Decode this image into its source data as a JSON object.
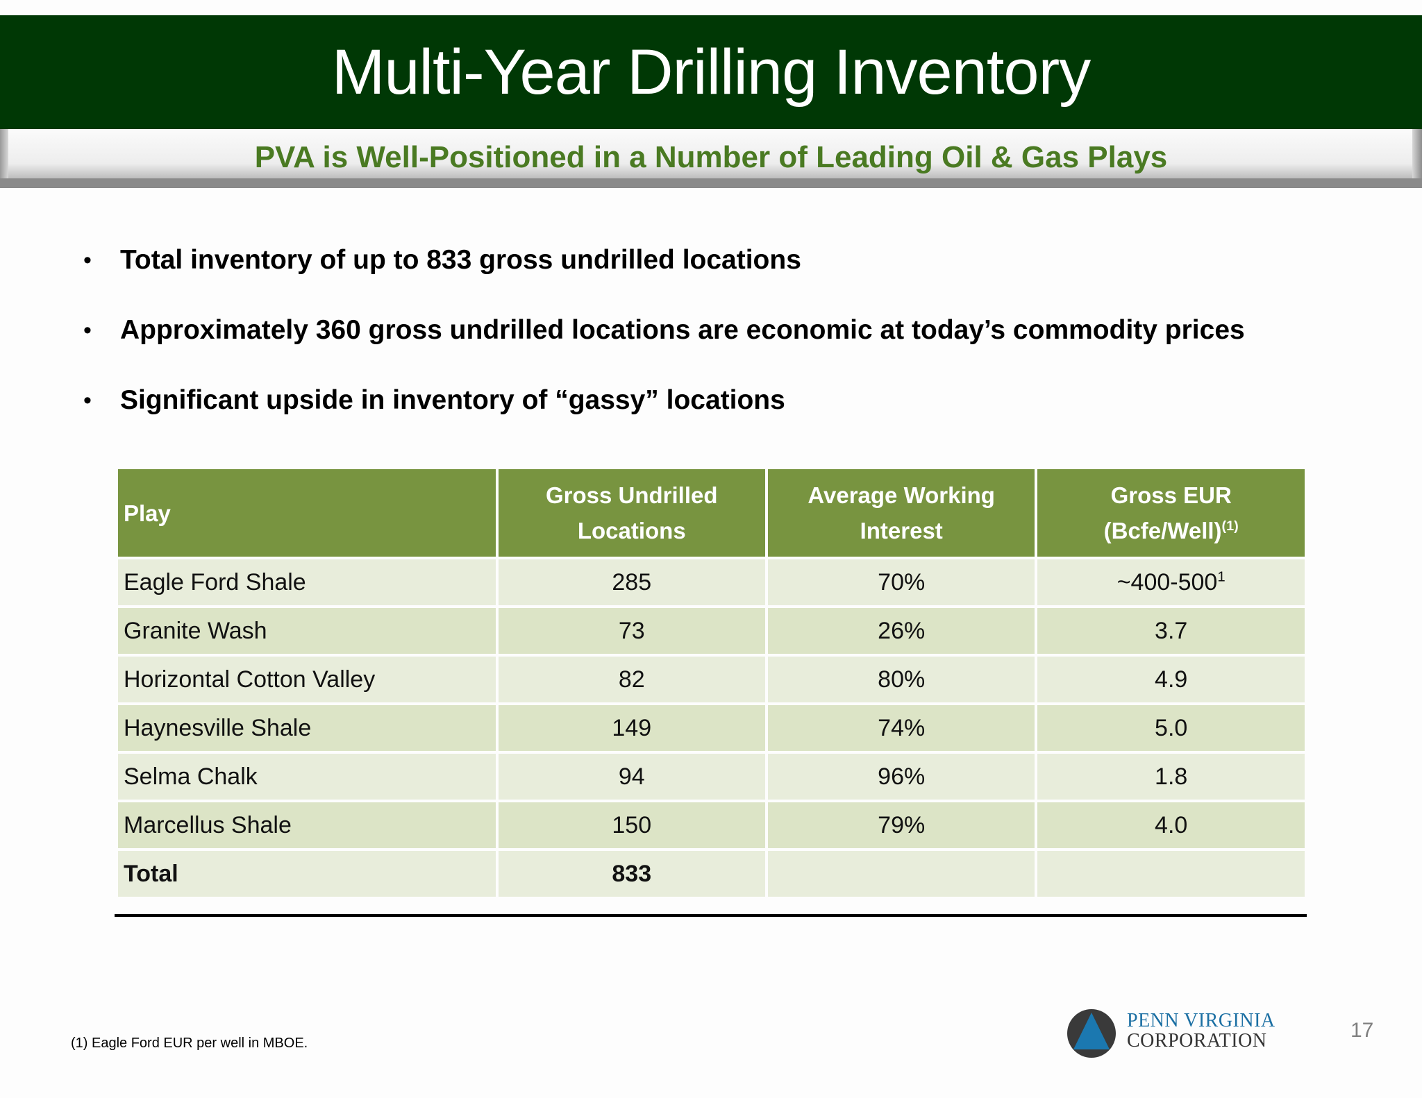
{
  "header": {
    "title": "Multi-Year Drilling Inventory",
    "subtitle": "PVA is Well-Positioned in a Number of Leading Oil & Gas Plays"
  },
  "bullets": [
    "Total inventory of up to 833 gross undrilled locations",
    "Approximately 360 gross undrilled locations are economic at today’s commodity prices",
    "Significant upside in inventory of “gassy” locations"
  ],
  "bullet_glyph": "•",
  "table": {
    "headers": {
      "play": "Play",
      "locations_l1": "Gross Undrilled",
      "locations_l2": "Locations",
      "interest_l1": "Average Working",
      "interest_l2": "Interest",
      "eur_l1": "Gross EUR",
      "eur_l2": "(Bcfe/Well)",
      "eur_note": "(1)"
    },
    "rows": [
      {
        "play": "Eagle Ford Shale",
        "locations": "285",
        "interest": "70%",
        "eur": "~400-500",
        "eur_note": "1"
      },
      {
        "play": "Granite Wash",
        "locations": "73",
        "interest": "26%",
        "eur": "3.7"
      },
      {
        "play": "Horizontal Cotton Valley",
        "locations": "82",
        "interest": "80%",
        "eur": "4.9"
      },
      {
        "play": "Haynesville Shale",
        "locations": "149",
        "interest": "74%",
        "eur": "5.0"
      },
      {
        "play": "Selma Chalk",
        "locations": "94",
        "interest": "96%",
        "eur": "1.8"
      },
      {
        "play": "Marcellus Shale",
        "locations": "150",
        "interest": "79%",
        "eur": "4.0"
      }
    ],
    "total": {
      "label": "Total",
      "locations": "833"
    }
  },
  "footnote": "(1) Eagle Ford EUR per well in MBOE.",
  "logo": {
    "line1": "PENN VIRGINIA",
    "line2": "CORPORATION",
    "icon": "triangle-in-circle-icon"
  },
  "page_number": "17",
  "colors": {
    "title_band": "#003805",
    "subtitle_text": "#4a7a22",
    "table_header": "#789440",
    "row_light": "#e8eddb",
    "row_dark": "#dce4c6",
    "logo_blue": "#1b6fa3"
  }
}
